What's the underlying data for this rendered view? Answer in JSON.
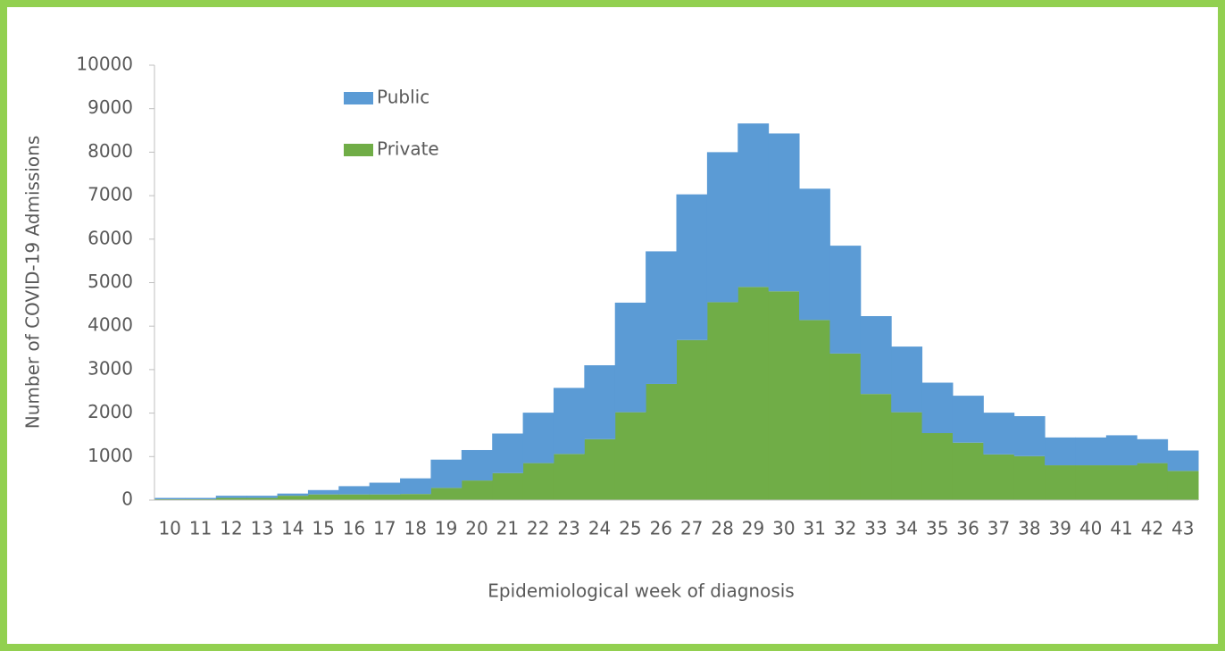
{
  "chart_data": {
    "type": "stacked-step",
    "x_label": "Epidemiological week of diagnosis",
    "y_label": "Number of COVID-19 Admissions",
    "categories": [
      "10",
      "11",
      "12",
      "13",
      "14",
      "15",
      "16",
      "17",
      "18",
      "19",
      "20",
      "21",
      "22",
      "23",
      "24",
      "25",
      "26",
      "27",
      "28",
      "29",
      "30",
      "31",
      "32",
      "33",
      "34",
      "35",
      "36",
      "37",
      "38",
      "39",
      "40",
      "41",
      "42",
      "43"
    ],
    "series": [
      {
        "name": "Private",
        "color": "#70ad47",
        "values": [
          20,
          20,
          50,
          50,
          100,
          130,
          130,
          130,
          140,
          280,
          450,
          620,
          850,
          1060,
          1400,
          2020,
          2670,
          3680,
          4550,
          4900,
          4800,
          4140,
          3370,
          2440,
          2020,
          1540,
          1320,
          1050,
          1010,
          800,
          800,
          800,
          850,
          670
        ]
      },
      {
        "name": "Public",
        "color": "#5b9bd5",
        "values": [
          30,
          30,
          50,
          50,
          50,
          100,
          190,
          270,
          360,
          650,
          700,
          910,
          1160,
          1520,
          1700,
          2520,
          3050,
          3350,
          3450,
          3760,
          3630,
          3020,
          2480,
          1790,
          1510,
          1160,
          1080,
          960,
          920,
          640,
          640,
          690,
          550,
          470
        ]
      }
    ],
    "ylim": [
      0,
      10000
    ],
    "yticks": [
      0,
      1000,
      2000,
      3000,
      4000,
      5000,
      6000,
      7000,
      8000,
      9000,
      10000
    ],
    "legend": "top-left",
    "grid": false
  }
}
